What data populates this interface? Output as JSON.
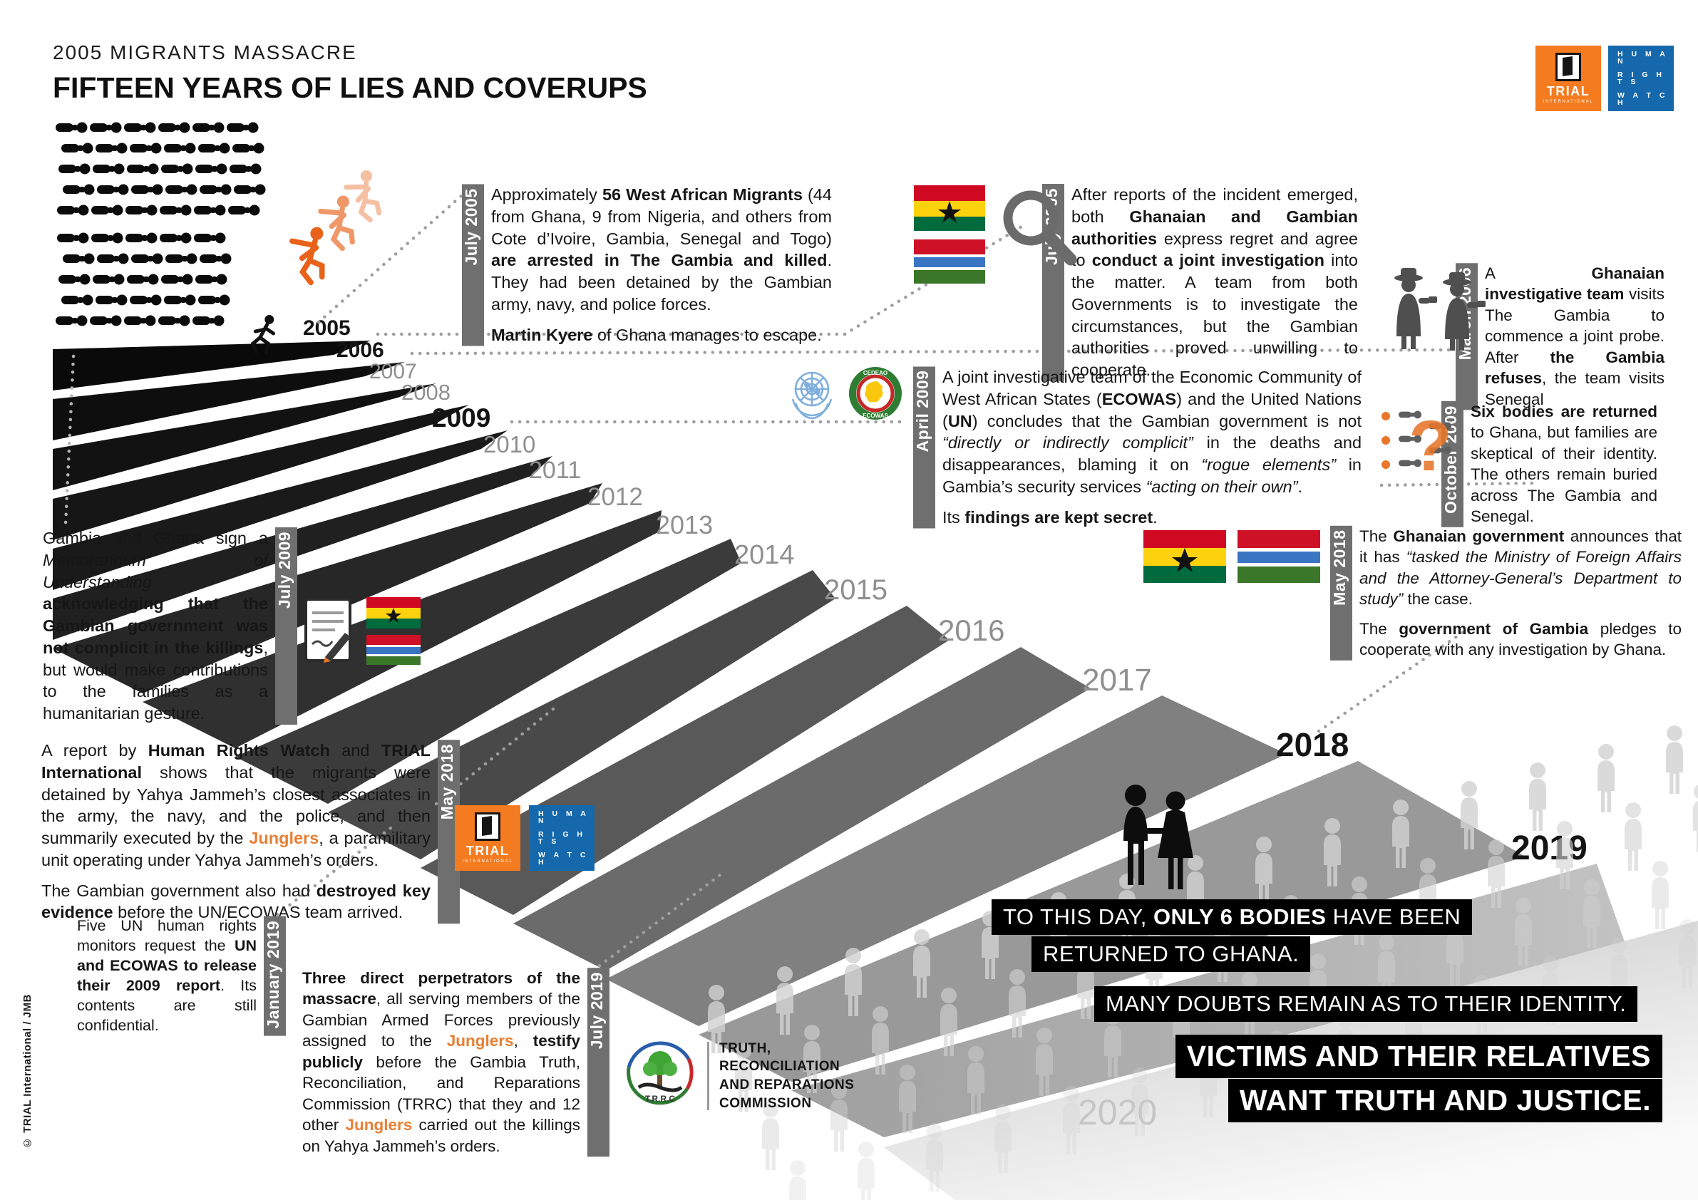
{
  "header": {
    "supertitle": "2005 MIGRANTS MASSACRE",
    "title": "FIFTEEN YEARS OF LIES AND COVERUPS"
  },
  "logos": {
    "trial": {
      "title": "TRIAL",
      "sub": "INTERNATIONAL"
    },
    "hrw": {
      "lines": [
        "H U M A N",
        "R I G H T S",
        "W A T C H"
      ]
    }
  },
  "colors": {
    "accent_orange": "#E87F33",
    "trial_orange": "#F47B20",
    "hrw_blue": "#1568AC",
    "tab_gray": "#6F6F6F",
    "ghana_flag": [
      "#CF0921",
      "#FCD20F",
      "#006B3D"
    ],
    "gambia_flag": [
      "#CE1126",
      "#3A75C4",
      "#3A7728"
    ]
  },
  "timeline": {
    "years": [
      "2005",
      "2006",
      "2007",
      "2008",
      "2009",
      "2010",
      "2011",
      "2012",
      "2013",
      "2014",
      "2015",
      "2016",
      "2017",
      "2018",
      "2019",
      "2020"
    ]
  },
  "events": [
    {
      "id": "jul2005a",
      "date": "July 2005",
      "paragraphs": [
        [
          {
            "t": "Approximately "
          },
          {
            "t": "56 West African Migrants",
            "b": 1
          },
          {
            "t": " (44 from Ghana, 9 from Nigeria, and others from Cote d’Ivoire, Gambia, Senegal and Togo) "
          },
          {
            "t": "are arrested in The Gambia and killed",
            "b": 1
          },
          {
            "t": ". They had been detained by the Gambian army, navy, and police forces."
          }
        ],
        [
          {
            "t": "Martin Kyere",
            "b": 1
          },
          {
            "t": " of Ghana manages to escape."
          }
        ]
      ]
    },
    {
      "id": "jul2005b",
      "date": "July 2005",
      "paragraphs": [
        [
          {
            "t": "After reports of the incident emerged, both "
          },
          {
            "t": "Ghanaian and Gambian authorities",
            "b": 1
          },
          {
            "t": " express regret and agree to "
          },
          {
            "t": "conduct a joint investigation",
            "b": 1
          },
          {
            "t": " into the matter. A team from both Governments is to investigate the circumstances, but the Gambian authorities proved unwilling to cooperate."
          }
        ]
      ]
    },
    {
      "id": "mar2006",
      "date": "March 2006",
      "paragraphs": [
        [
          {
            "t": "A "
          },
          {
            "t": "Ghanaian investigative team",
            "b": 1
          },
          {
            "t": " visits The Gambia to commence a joint probe. After "
          },
          {
            "t": "the Gambia refuses",
            "b": 1
          },
          {
            "t": ", the team visits Senegal"
          }
        ]
      ]
    },
    {
      "id": "apr2009",
      "date": "April 2009",
      "paragraphs": [
        [
          {
            "t": "A joint investigative team of the Economic Community of West African States ("
          },
          {
            "t": "ECOWAS",
            "b": 1
          },
          {
            "t": ") and the United Nations ("
          },
          {
            "t": "UN",
            "b": 1
          },
          {
            "t": ") concludes that the Gambian government is not "
          },
          {
            "t": "“directly or indirectly complicit”",
            "i": 1
          },
          {
            "t": " in the deaths and disappearances, blaming it on "
          },
          {
            "t": "“rogue elements”",
            "i": 1
          },
          {
            "t": " in Gambia’s security services "
          },
          {
            "t": "“acting on their own”",
            "i": 1
          },
          {
            "t": "."
          }
        ],
        [
          {
            "t": "Its "
          },
          {
            "t": "findings are kept secret",
            "b": 1
          },
          {
            "t": "."
          }
        ]
      ]
    },
    {
      "id": "oct2009",
      "date": "October 2009",
      "paragraphs": [
        [
          {
            "t": "Six bodies are returned",
            "b": 1
          },
          {
            "t": " to Ghana, but families are skeptical of their identity. The others remain buried across The Gambia and Senegal."
          }
        ]
      ]
    },
    {
      "id": "jul2009",
      "date": "July 2009",
      "paragraphs": [
        [
          {
            "t": "Gambia and Ghana sign a "
          },
          {
            "t": "Memorandum of Understanding",
            "i": 1
          },
          {
            "t": " "
          },
          {
            "t": "acknowledging that the Gambian government was not complicit in the killings",
            "b": 1
          },
          {
            "t": ", but would make contributions to the families as a humanitarian gesture."
          }
        ]
      ]
    },
    {
      "id": "may2018r",
      "date": "May 2018",
      "paragraphs": [
        [
          {
            "t": "The "
          },
          {
            "t": "Ghanaian government",
            "b": 1
          },
          {
            "t": " announces that it has "
          },
          {
            "t": "“tasked the Ministry of Foreign Affairs and the Attorney-General’s Department to study”",
            "i": 1
          },
          {
            "t": " the case."
          }
        ],
        [
          {
            "t": "The "
          },
          {
            "t": "government of Gambia",
            "b": 1
          },
          {
            "t": " pledges to cooperate with any investigation by Ghana."
          }
        ]
      ]
    },
    {
      "id": "may2018l",
      "date": "May 2018",
      "paragraphs": [
        [
          {
            "t": "A report by "
          },
          {
            "t": "Human Rights Watch",
            "b": 1
          },
          {
            "t": " and "
          },
          {
            "t": "TRIAL International",
            "b": 1
          },
          {
            "t": " shows that the migrants were detained by Yahya Jammeh’s closest associates in the army, the navy, and the police, and then summarily executed by the "
          },
          {
            "t": "Junglers",
            "o": 1
          },
          {
            "t": ", a paramilitary unit operating under Yahya Jammeh’s orders."
          }
        ],
        [
          {
            "t": "The Gambian government also had "
          },
          {
            "t": "destroyed key evidence",
            "b": 1
          },
          {
            "t": " before the UN/ECOWAS team arrived."
          }
        ]
      ]
    },
    {
      "id": "jan2019",
      "date": "January 2019",
      "paragraphs": [
        [
          {
            "t": "Five UN human rights monitors request the "
          },
          {
            "t": "UN and ECOWAS to release their 2009 report",
            "b": 1
          },
          {
            "t": ". Its contents are still confidential."
          }
        ]
      ]
    },
    {
      "id": "jul2019",
      "date": "July 2019",
      "paragraphs": [
        [
          {
            "t": "Three direct perpetrators of the massacre",
            "b": 1
          },
          {
            "t": ", all serving members of the Gambian Armed Forces previously assigned to the "
          },
          {
            "t": "Junglers",
            "o": 1
          },
          {
            "t": ", "
          },
          {
            "t": "testify publicly",
            "b": 1
          },
          {
            "t": " before the Gambia Truth, Reconciliation, and Reparations Commission (TRRC) that they and 12 other "
          },
          {
            "t": "Junglers",
            "o": 1
          },
          {
            "t": " carried out the killings on Yahya Jammeh’s orders."
          }
        ]
      ]
    }
  ],
  "statements": {
    "only6_pre": "TO THIS DAY, ",
    "only6_bold": "ONLY 6 BODIES",
    "only6_post": " HAVE BEEN",
    "only6_line2": "RETURNED TO GHANA.",
    "doubts": "MANY DOUBTS REMAIN AS TO THEIR IDENTITY.",
    "victims1": "VICTIMS AND THEIR RELATIVES",
    "victims2": "WANT TRUTH AND JUSTICE."
  },
  "trrc": {
    "acronym": "T.R.R.C",
    "lines": [
      "TRUTH,",
      "RECONCILIATION",
      "AND REPARATIONS",
      "COMMISSION"
    ]
  },
  "ecowas": {
    "top": "CEDEAO",
    "bottom": "ECOWAS"
  },
  "credit": "© TRIAL International / JMB"
}
